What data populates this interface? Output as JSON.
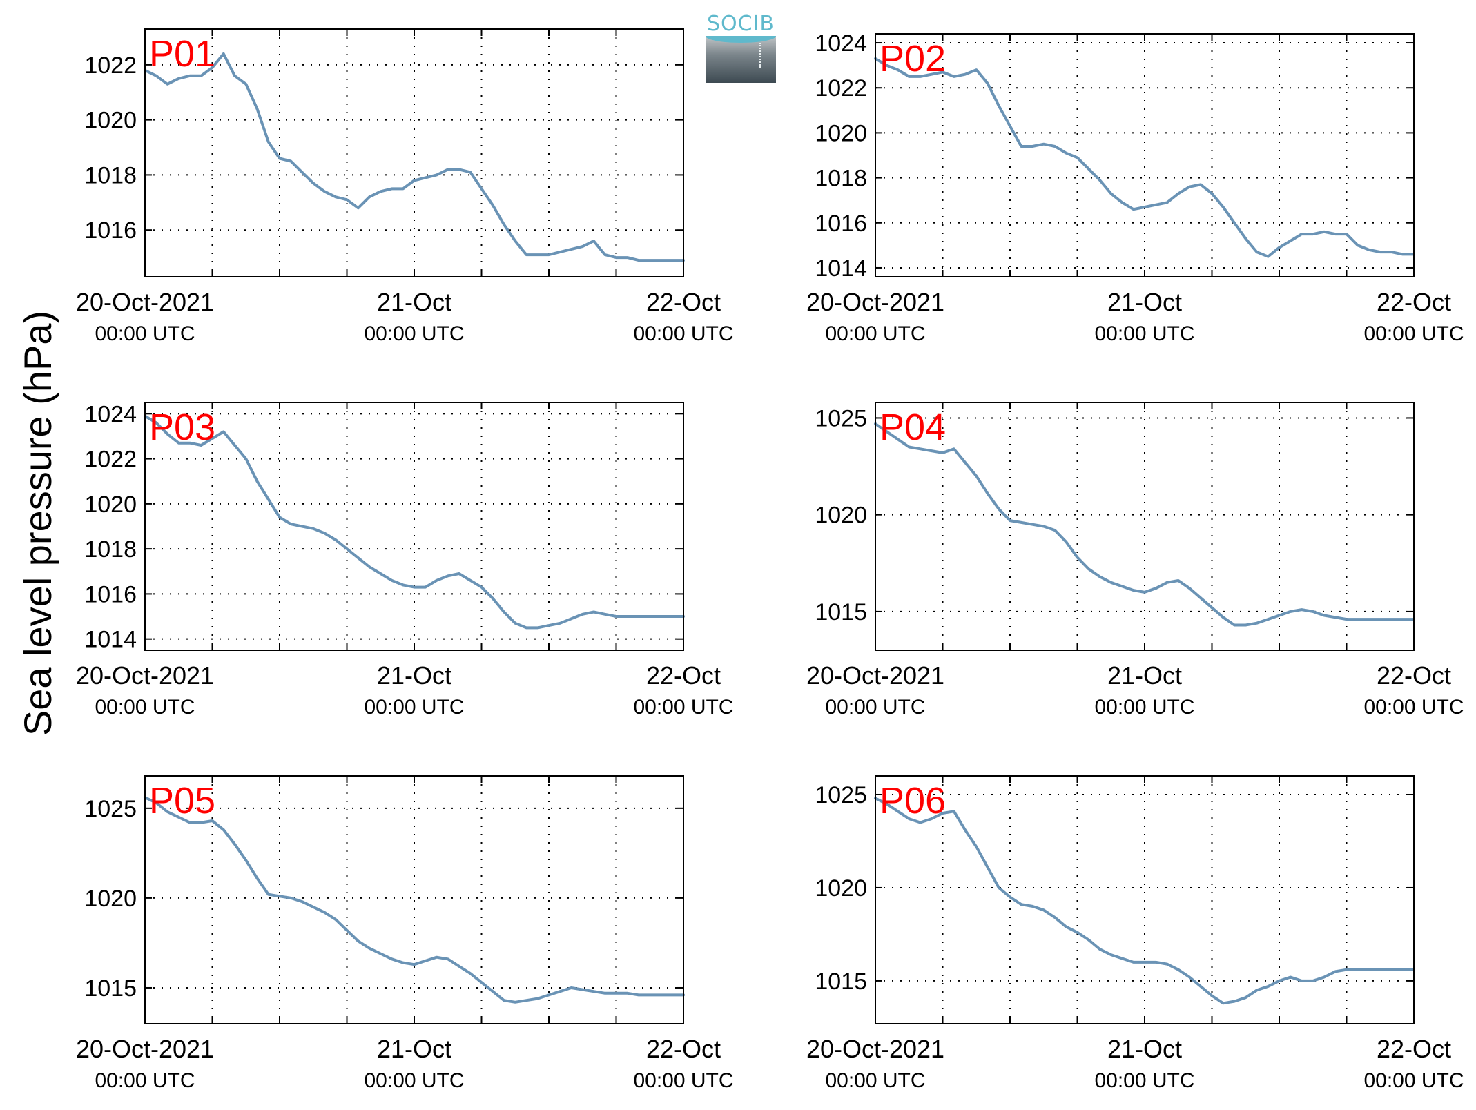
{
  "figure": {
    "ylabel": "Sea level pressure (hPa)",
    "logo_text": "SOCIB",
    "line_color": "#6a93b5",
    "label_color": "#ff0000"
  },
  "chart_data": [
    {
      "type": "line",
      "label": "P01",
      "xlim": [
        0,
        48
      ],
      "ylim": [
        1014.3,
        1023.3
      ],
      "yticks": [
        1016,
        1018,
        1020,
        1022
      ],
      "xticks": [
        0,
        24,
        48
      ],
      "xtick_labels": [
        [
          "20-Oct-2021",
          "00:00 UTC"
        ],
        [
          "21-Oct",
          "00:00 UTC"
        ],
        [
          "22-Oct",
          "00:00 UTC"
        ]
      ],
      "x": [
        0,
        1,
        2,
        3,
        4,
        5,
        6,
        7,
        8,
        9,
        10,
        11,
        12,
        13,
        14,
        15,
        16,
        17,
        18,
        19,
        20,
        21,
        22,
        23,
        24,
        25,
        26,
        27,
        28,
        29,
        30,
        31,
        32,
        33,
        34,
        35,
        36,
        37,
        38,
        39,
        40,
        41,
        42,
        43,
        44,
        45,
        46,
        47,
        48
      ],
      "y": [
        1021.8,
        1021.6,
        1021.3,
        1021.5,
        1021.6,
        1021.6,
        1021.9,
        1022.4,
        1021.6,
        1021.3,
        1020.4,
        1019.2,
        1018.6,
        1018.5,
        1018.1,
        1017.7,
        1017.4,
        1017.2,
        1017.1,
        1016.8,
        1017.2,
        1017.4,
        1017.5,
        1017.5,
        1017.8,
        1017.9,
        1018.0,
        1018.2,
        1018.2,
        1018.1,
        1017.5,
        1016.9,
        1016.2,
        1015.6,
        1015.1,
        1015.1,
        1015.1,
        1015.2,
        1015.3,
        1015.4,
        1015.6,
        1015.1,
        1015.0,
        1015.0,
        1014.9,
        1014.9,
        1014.9,
        1014.9,
        1014.9
      ]
    },
    {
      "type": "line",
      "label": "P02",
      "xlim": [
        0,
        48
      ],
      "ylim": [
        1013.6,
        1024.4
      ],
      "yticks": [
        1014,
        1016,
        1018,
        1020,
        1022,
        1024
      ],
      "xticks": [
        0,
        24,
        48
      ],
      "xtick_labels": [
        [
          "20-Oct-2021",
          "00:00 UTC"
        ],
        [
          "21-Oct",
          "00:00 UTC"
        ],
        [
          "22-Oct",
          "00:00 UTC"
        ]
      ],
      "x": [
        0,
        1,
        2,
        3,
        4,
        5,
        6,
        7,
        8,
        9,
        10,
        11,
        12,
        13,
        14,
        15,
        16,
        17,
        18,
        19,
        20,
        21,
        22,
        23,
        24,
        25,
        26,
        27,
        28,
        29,
        30,
        31,
        32,
        33,
        34,
        35,
        36,
        37,
        38,
        39,
        40,
        41,
        42,
        43,
        44,
        45,
        46,
        47,
        48
      ],
      "y": [
        1023.3,
        1023.0,
        1022.8,
        1022.5,
        1022.5,
        1022.6,
        1022.7,
        1022.5,
        1022.6,
        1022.8,
        1022.2,
        1021.2,
        1020.3,
        1019.4,
        1019.4,
        1019.5,
        1019.4,
        1019.1,
        1018.9,
        1018.4,
        1017.9,
        1017.3,
        1016.9,
        1016.6,
        1016.7,
        1016.8,
        1016.9,
        1017.3,
        1017.6,
        1017.7,
        1017.3,
        1016.7,
        1016.0,
        1015.3,
        1014.7,
        1014.5,
        1014.9,
        1015.2,
        1015.5,
        1015.5,
        1015.6,
        1015.5,
        1015.5,
        1015.0,
        1014.8,
        1014.7,
        1014.7,
        1014.6,
        1014.6
      ]
    },
    {
      "type": "line",
      "label": "P03",
      "xlim": [
        0,
        48
      ],
      "ylim": [
        1013.5,
        1024.5
      ],
      "yticks": [
        1014,
        1016,
        1018,
        1020,
        1022,
        1024
      ],
      "xticks": [
        0,
        24,
        48
      ],
      "xtick_labels": [
        [
          "20-Oct-2021",
          "00:00 UTC"
        ],
        [
          "21-Oct",
          "00:00 UTC"
        ],
        [
          "22-Oct",
          "00:00 UTC"
        ]
      ],
      "x": [
        0,
        1,
        2,
        3,
        4,
        5,
        6,
        7,
        8,
        9,
        10,
        11,
        12,
        13,
        14,
        15,
        16,
        17,
        18,
        19,
        20,
        21,
        22,
        23,
        24,
        25,
        26,
        27,
        28,
        29,
        30,
        31,
        32,
        33,
        34,
        35,
        36,
        37,
        38,
        39,
        40,
        41,
        42,
        43,
        44,
        45,
        46,
        47,
        48
      ],
      "y": [
        1023.9,
        1023.6,
        1023.1,
        1022.7,
        1022.7,
        1022.6,
        1022.9,
        1023.2,
        1022.6,
        1022.0,
        1021.0,
        1020.2,
        1019.4,
        1019.1,
        1019.0,
        1018.9,
        1018.7,
        1018.4,
        1018.0,
        1017.6,
        1017.2,
        1016.9,
        1016.6,
        1016.4,
        1016.3,
        1016.3,
        1016.6,
        1016.8,
        1016.9,
        1016.6,
        1016.3,
        1015.8,
        1015.2,
        1014.7,
        1014.5,
        1014.5,
        1014.6,
        1014.7,
        1014.9,
        1015.1,
        1015.2,
        1015.1,
        1015.0,
        1015.0,
        1015.0,
        1015.0,
        1015.0,
        1015.0,
        1015.0
      ]
    },
    {
      "type": "line",
      "label": "P04",
      "xlim": [
        0,
        48
      ],
      "ylim": [
        1013.0,
        1025.8
      ],
      "yticks": [
        1015,
        1020,
        1025
      ],
      "xticks": [
        0,
        24,
        48
      ],
      "xtick_labels": [
        [
          "20-Oct-2021",
          "00:00 UTC"
        ],
        [
          "21-Oct",
          "00:00 UTC"
        ],
        [
          "22-Oct",
          "00:00 UTC"
        ]
      ],
      "x": [
        0,
        1,
        2,
        3,
        4,
        5,
        6,
        7,
        8,
        9,
        10,
        11,
        12,
        13,
        14,
        15,
        16,
        17,
        18,
        19,
        20,
        21,
        22,
        23,
        24,
        25,
        26,
        27,
        28,
        29,
        30,
        31,
        32,
        33,
        34,
        35,
        36,
        37,
        38,
        39,
        40,
        41,
        42,
        43,
        44,
        45,
        46,
        47,
        48
      ],
      "y": [
        1024.7,
        1024.3,
        1023.9,
        1023.5,
        1023.4,
        1023.3,
        1023.2,
        1023.4,
        1022.7,
        1022.0,
        1021.1,
        1020.3,
        1019.7,
        1019.6,
        1019.5,
        1019.4,
        1019.2,
        1018.6,
        1017.8,
        1017.2,
        1016.8,
        1016.5,
        1016.3,
        1016.1,
        1016.0,
        1016.2,
        1016.5,
        1016.6,
        1016.2,
        1015.7,
        1015.2,
        1014.7,
        1014.3,
        1014.3,
        1014.4,
        1014.6,
        1014.8,
        1015.0,
        1015.1,
        1015.0,
        1014.8,
        1014.7,
        1014.6,
        1014.6,
        1014.6,
        1014.6,
        1014.6,
        1014.6,
        1014.6
      ]
    },
    {
      "type": "line",
      "label": "P05",
      "xlim": [
        0,
        48
      ],
      "ylim": [
        1013.0,
        1026.8
      ],
      "yticks": [
        1015,
        1020,
        1025
      ],
      "xticks": [
        0,
        24,
        48
      ],
      "xtick_labels": [
        [
          "20-Oct-2021",
          "00:00 UTC"
        ],
        [
          "21-Oct",
          "00:00 UTC"
        ],
        [
          "22-Oct",
          "00:00 UTC"
        ]
      ],
      "x": [
        0,
        1,
        2,
        3,
        4,
        5,
        6,
        7,
        8,
        9,
        10,
        11,
        12,
        13,
        14,
        15,
        16,
        17,
        18,
        19,
        20,
        21,
        22,
        23,
        24,
        25,
        26,
        27,
        28,
        29,
        30,
        31,
        32,
        33,
        34,
        35,
        36,
        37,
        38,
        39,
        40,
        41,
        42,
        43,
        44,
        45,
        46,
        47,
        48
      ],
      "y": [
        1025.6,
        1025.3,
        1024.8,
        1024.5,
        1024.2,
        1024.2,
        1024.3,
        1023.8,
        1023.0,
        1022.1,
        1021.1,
        1020.2,
        1020.1,
        1020.0,
        1019.8,
        1019.5,
        1019.2,
        1018.8,
        1018.2,
        1017.6,
        1017.2,
        1016.9,
        1016.6,
        1016.4,
        1016.3,
        1016.5,
        1016.7,
        1016.6,
        1016.2,
        1015.8,
        1015.3,
        1014.8,
        1014.3,
        1014.2,
        1014.3,
        1014.4,
        1014.6,
        1014.8,
        1015.0,
        1014.9,
        1014.8,
        1014.7,
        1014.7,
        1014.7,
        1014.6,
        1014.6,
        1014.6,
        1014.6,
        1014.6
      ]
    },
    {
      "type": "line",
      "label": "P06",
      "xlim": [
        0,
        48
      ],
      "ylim": [
        1012.7,
        1026.0
      ],
      "yticks": [
        1015,
        1020,
        1025
      ],
      "xticks": [
        0,
        24,
        48
      ],
      "xtick_labels": [
        [
          "20-Oct-2021",
          "00:00 UTC"
        ],
        [
          "21-Oct",
          "00:00 UTC"
        ],
        [
          "22-Oct",
          "00:00 UTC"
        ]
      ],
      "x": [
        0,
        1,
        2,
        3,
        4,
        5,
        6,
        7,
        8,
        9,
        10,
        11,
        12,
        13,
        14,
        15,
        16,
        17,
        18,
        19,
        20,
        21,
        22,
        23,
        24,
        25,
        26,
        27,
        28,
        29,
        30,
        31,
        32,
        33,
        34,
        35,
        36,
        37,
        38,
        39,
        40,
        41,
        42,
        43,
        44,
        45,
        46,
        47,
        48
      ],
      "y": [
        1024.8,
        1024.5,
        1024.1,
        1023.7,
        1023.5,
        1023.7,
        1024.0,
        1024.1,
        1023.1,
        1022.2,
        1021.1,
        1020.0,
        1019.5,
        1019.1,
        1019.0,
        1018.8,
        1018.4,
        1017.9,
        1017.6,
        1017.2,
        1016.7,
        1016.4,
        1016.2,
        1016.0,
        1016.0,
        1016.0,
        1015.9,
        1015.6,
        1015.2,
        1014.7,
        1014.2,
        1013.8,
        1013.9,
        1014.1,
        1014.5,
        1014.7,
        1015.0,
        1015.2,
        1015.0,
        1015.0,
        1015.2,
        1015.5,
        1015.6,
        1015.6,
        1015.6,
        1015.6,
        1015.6,
        1015.6,
        1015.6
      ]
    }
  ]
}
